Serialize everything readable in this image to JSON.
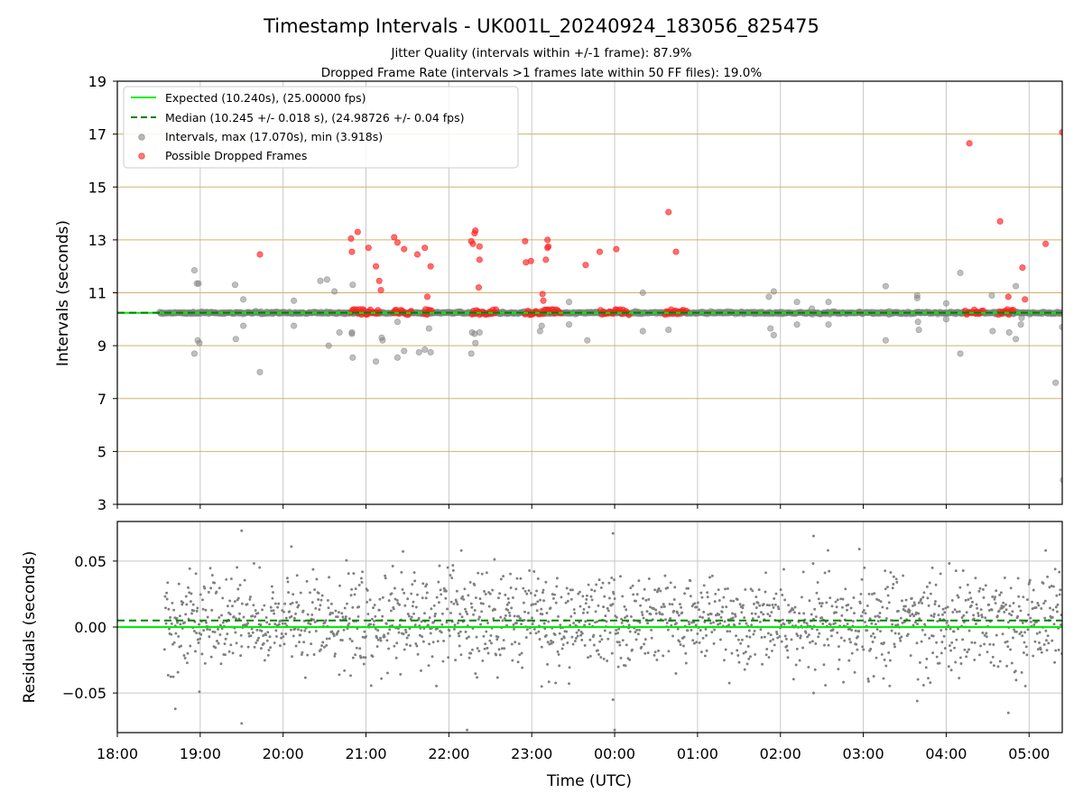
{
  "chart_data": {
    "type": "scatter",
    "title": "Timestamp Intervals - UK001L_20240924_183056_825475",
    "subtitles": [
      "Jitter Quality (intervals within +/-1 frame): 87.9%",
      "Dropped Frame Rate (intervals >1 frames late within 50 FF files): 19.0%"
    ],
    "xlabel": "Time (UTC)",
    "xlim_hours": [
      18.0,
      29.4
    ],
    "x_tick_labels": [
      "18:00",
      "19:00",
      "20:00",
      "21:00",
      "22:00",
      "23:00",
      "00:00",
      "01:00",
      "02:00",
      "03:00",
      "04:00",
      "05:00"
    ],
    "data_start_hour": 18.51,
    "top_panel": {
      "ylabel": "Intervals (seconds)",
      "ylim": [
        3,
        19
      ],
      "y_ticks": [
        "3",
        "5",
        "7",
        "9",
        "11",
        "13",
        "15",
        "17",
        "19"
      ],
      "x_gridlines": true,
      "y_gridline_color": "#d2b26a",
      "expected_interval": 10.24,
      "median_interval": 10.245,
      "legend_position": "top-left",
      "legend": [
        "Expected (10.240s), (25.00000 fps)",
        "Median (10.245 +/- 0.018 s), (24.98726 +/- 0.04 fps)",
        "Intervals, max (17.070s), min (3.918s)",
        "Possible Dropped Frames"
      ],
      "outliers_normal": [
        [
          18.93,
          11.85
        ],
        [
          18.96,
          11.35
        ],
        [
          18.98,
          11.35
        ],
        [
          18.93,
          8.7
        ],
        [
          18.97,
          9.2
        ],
        [
          18.99,
          9.1
        ],
        [
          19.42,
          11.3
        ],
        [
          19.43,
          9.25
        ],
        [
          19.52,
          10.75
        ],
        [
          19.52,
          9.75
        ],
        [
          19.72,
          8.0
        ],
        [
          20.13,
          10.7
        ],
        [
          20.13,
          9.75
        ],
        [
          20.45,
          11.45
        ],
        [
          20.53,
          11.5
        ],
        [
          20.55,
          9.0
        ],
        [
          20.62,
          11.05
        ],
        [
          20.68,
          9.5
        ],
        [
          20.84,
          11.3
        ],
        [
          20.83,
          9.5
        ],
        [
          20.83,
          9.45
        ],
        [
          20.84,
          8.55
        ],
        [
          21.12,
          8.4
        ],
        [
          21.19,
          9.3
        ],
        [
          21.2,
          9.2
        ],
        [
          21.38,
          8.55
        ],
        [
          21.38,
          9.9
        ],
        [
          21.46,
          8.8
        ],
        [
          21.64,
          8.75
        ],
        [
          21.71,
          8.85
        ],
        [
          21.78,
          8.75
        ],
        [
          21.76,
          9.65
        ],
        [
          22.28,
          9.5
        ],
        [
          22.31,
          9.45
        ],
        [
          22.32,
          9.1
        ],
        [
          22.37,
          9.5
        ],
        [
          22.27,
          8.7
        ],
        [
          23.1,
          9.55
        ],
        [
          23.12,
          9.75
        ],
        [
          23.45,
          10.65
        ],
        [
          23.45,
          9.8
        ],
        [
          23.67,
          9.2
        ],
        [
          24.34,
          11.0
        ],
        [
          24.34,
          9.55
        ],
        [
          24.65,
          9.6
        ],
        [
          25.86,
          10.85
        ],
        [
          25.88,
          9.65
        ],
        [
          25.92,
          11.05
        ],
        [
          25.92,
          9.4
        ],
        [
          26.2,
          10.65
        ],
        [
          26.2,
          9.8
        ],
        [
          26.38,
          10.4
        ],
        [
          26.58,
          10.65
        ],
        [
          26.58,
          9.8
        ],
        [
          27.27,
          11.25
        ],
        [
          27.27,
          9.2
        ],
        [
          27.65,
          10.9
        ],
        [
          27.65,
          10.8
        ],
        [
          27.66,
          9.9
        ],
        [
          27.67,
          9.6
        ],
        [
          28.0,
          10.6
        ],
        [
          28.0,
          10.0
        ],
        [
          28.17,
          11.75
        ],
        [
          28.17,
          8.7
        ],
        [
          28.55,
          10.9
        ],
        [
          28.56,
          9.55
        ],
        [
          28.76,
          9.5
        ],
        [
          28.84,
          11.25
        ],
        [
          28.84,
          9.25
        ],
        [
          28.9,
          9.8
        ],
        [
          28.91,
          10.05
        ],
        [
          29.32,
          7.6
        ],
        [
          29.4,
          9.7
        ],
        [
          29.41,
          3.918
        ]
      ],
      "dropped_frames": [
        [
          19.72,
          12.45
        ],
        [
          20.82,
          13.05
        ],
        [
          20.83,
          12.55
        ],
        [
          20.9,
          13.3
        ],
        [
          21.03,
          12.7
        ],
        [
          21.12,
          12.0
        ],
        [
          21.16,
          11.45
        ],
        [
          21.18,
          11.1
        ],
        [
          21.34,
          13.1
        ],
        [
          21.38,
          12.9
        ],
        [
          21.46,
          12.65
        ],
        [
          21.62,
          12.45
        ],
        [
          21.71,
          12.7
        ],
        [
          21.74,
          10.85
        ],
        [
          21.78,
          12.0
        ],
        [
          22.27,
          12.95
        ],
        [
          22.31,
          13.25
        ],
        [
          22.32,
          13.35
        ],
        [
          22.29,
          12.85
        ],
        [
          22.37,
          12.75
        ],
        [
          22.37,
          12.25
        ],
        [
          22.36,
          11.2
        ],
        [
          22.92,
          12.95
        ],
        [
          22.93,
          12.15
        ],
        [
          22.99,
          12.2
        ],
        [
          23.13,
          10.95
        ],
        [
          23.14,
          10.7
        ],
        [
          23.17,
          12.25
        ],
        [
          23.19,
          12.7
        ],
        [
          23.2,
          12.75
        ],
        [
          23.19,
          13.0
        ],
        [
          23.65,
          12.05
        ],
        [
          23.82,
          12.55
        ],
        [
          24.02,
          12.65
        ],
        [
          24.65,
          14.05
        ],
        [
          24.74,
          12.55
        ],
        [
          28.28,
          16.65
        ],
        [
          28.65,
          13.7
        ],
        [
          28.75,
          10.85
        ],
        [
          28.92,
          11.95
        ],
        [
          28.95,
          10.75
        ],
        [
          29.2,
          12.85
        ],
        [
          29.4,
          17.07
        ]
      ],
      "dropped_clusters": [
        [
          20.82,
          21.18
        ],
        [
          21.33,
          21.56
        ],
        [
          21.7,
          21.8
        ],
        [
          22.28,
          22.58
        ],
        [
          22.92,
          23.36
        ],
        [
          23.83,
          24.18
        ],
        [
          24.61,
          24.88
        ],
        [
          28.23,
          28.45
        ],
        [
          28.63,
          28.82
        ]
      ]
    },
    "bottom_panel": {
      "ylabel": "Residuals (seconds)",
      "ylim": [
        -0.08,
        0.08
      ],
      "y_ticks": [
        "0.05",
        "0.00",
        "−0.05"
      ],
      "expected_residual": 0.0,
      "median_residual": 0.005,
      "point_spread_sd": 0.018,
      "extreme_points": [
        [
          18.7,
          -0.062
        ],
        [
          18.99,
          -0.049
        ],
        [
          19.5,
          0.073
        ],
        [
          19.5,
          -0.073
        ],
        [
          21.64,
          -0.082
        ],
        [
          22.22,
          -0.078
        ],
        [
          23.12,
          -0.045
        ],
        [
          23.21,
          -0.081
        ],
        [
          23.95,
          -0.082
        ],
        [
          23.98,
          0.071
        ],
        [
          23.98,
          -0.055
        ],
        [
          24.0,
          -0.078
        ],
        [
          26.4,
          0.069
        ],
        [
          26.4,
          -0.05
        ],
        [
          27.65,
          -0.056
        ],
        [
          28.75,
          -0.065
        ],
        [
          29.2,
          0.058
        ],
        [
          22.15,
          0.058
        ],
        [
          20.1,
          0.061
        ]
      ]
    },
    "colors": {
      "expected": "#00ee00",
      "median": "#008000",
      "intervals": "#808080",
      "dropped": "#ff2020",
      "x_grid": "#c8c8c8",
      "y_grid_top": "#d2b26a"
    }
  }
}
